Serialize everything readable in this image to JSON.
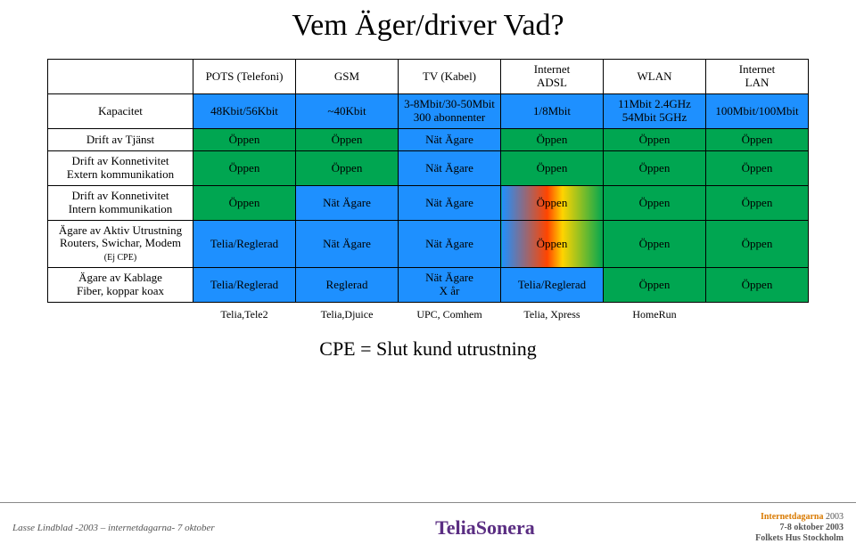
{
  "title": "Vem Äger/driver Vad?",
  "columns": [
    {
      "h1": "POTS (Telefoni)"
    },
    {
      "h1": "GSM"
    },
    {
      "h1": "TV (Kabel)"
    },
    {
      "h1": "Internet",
      "h2": "ADSL"
    },
    {
      "h1": "WLAN"
    },
    {
      "h1": "Internet",
      "h2": "LAN"
    }
  ],
  "rows": {
    "kapacitet": {
      "label": "Kapacitet",
      "cells": [
        {
          "t": "48Kbit/56Kbit",
          "c": "blue"
        },
        {
          "t": "~40Kbit",
          "c": "blue"
        },
        {
          "t1": "3-8Mbit/30-50Mbit",
          "t2": "300 abonnenter",
          "c": "blue"
        },
        {
          "t": "1/8Mbit",
          "c": "blue"
        },
        {
          "t1": "11Mbit 2.4GHz",
          "t2": "54Mbit 5GHz",
          "c": "blue"
        },
        {
          "t": "100Mbit/100Mbit",
          "c": "blue"
        }
      ]
    },
    "drift_tjanst": {
      "label": "Drift av Tjänst",
      "cells": [
        {
          "t": "Öppen",
          "c": "green"
        },
        {
          "t": "Öppen",
          "c": "green"
        },
        {
          "t": "Nät Ägare",
          "c": "blue"
        },
        {
          "t": "Öppen",
          "c": "green"
        },
        {
          "t": "Öppen",
          "c": "green"
        },
        {
          "t": "Öppen",
          "c": "green"
        }
      ]
    },
    "drift_extern": {
      "label1": "Drift av Konnetivitet",
      "label2": "Extern kommunikation",
      "cells": [
        {
          "t": "Öppen",
          "c": "green"
        },
        {
          "t": "Öppen",
          "c": "green"
        },
        {
          "t": "Nät Ägare",
          "c": "blue"
        },
        {
          "t": "Öppen",
          "c": "green"
        },
        {
          "t": "Öppen",
          "c": "green"
        },
        {
          "t": "Öppen",
          "c": "green"
        }
      ]
    },
    "drift_intern": {
      "label1": "Drift av Konnetivitet",
      "label2": "Intern kommunikation",
      "cells": [
        {
          "t": "Öppen",
          "c": "green"
        },
        {
          "t": "Nät Ägare",
          "c": "blue"
        },
        {
          "t": "Nät Ägare",
          "c": "blue"
        },
        {
          "t": "Öppen",
          "c": "grad-bg"
        },
        {
          "t": "Öppen",
          "c": "green"
        },
        {
          "t": "Öppen",
          "c": "green"
        }
      ]
    },
    "agare_aktiv": {
      "label1": "Ägare av Aktiv Utrustning",
      "label2": "Routers, Swichar, Modem",
      "sub": "(Ej CPE)",
      "cells": [
        {
          "t": "Telia/Reglerad",
          "c": "blue"
        },
        {
          "t": "Nät Ägare",
          "c": "blue"
        },
        {
          "t": "Nät Ägare",
          "c": "blue"
        },
        {
          "t": "Öppen",
          "c": "grad-bg"
        },
        {
          "t": "Öppen",
          "c": "green"
        },
        {
          "t": "Öppen",
          "c": "green"
        }
      ]
    },
    "agare_kablage": {
      "label1": "Ägare av Kablage",
      "label2": "Fiber, koppar koax",
      "cells": [
        {
          "t": "Telia/Reglerad",
          "c": "blue"
        },
        {
          "t": "Reglerad",
          "c": "blue"
        },
        {
          "t1": "Nät Ägare",
          "t2": "X år",
          "c": "blue"
        },
        {
          "t": "Telia/Reglerad",
          "c": "blue"
        },
        {
          "t": "Öppen",
          "c": "green"
        },
        {
          "t": "Öppen",
          "c": "green"
        }
      ]
    }
  },
  "providers": [
    "Telia,Tele2",
    "Telia,Djuice",
    "UPC, Comhem",
    "Telia, Xpress",
    "HomeRun",
    ""
  ],
  "cpe": "CPE = Slut kund utrustning",
  "footer": {
    "left": "Lasse Lindblad  -2003 – internetdagarna- 7 oktober",
    "center": "TeliaSonera",
    "right_brand": "Internetdagarna",
    "right_year": "2003",
    "right_l1": "7-8 oktober 2003",
    "right_l2": "Folkets Hus Stockholm"
  }
}
